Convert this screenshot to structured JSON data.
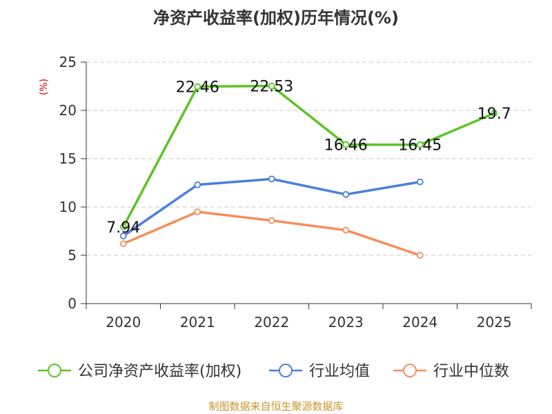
{
  "title": "净资产收益率(加权)历年情况(%)",
  "footer": "制图数据来自恒生聚源数据库",
  "chart_data": {
    "type": "line",
    "title": "净资产收益率(加权)历年情况(%)",
    "ylabel": "(%)",
    "xlabel": "",
    "ylim": [
      0,
      25
    ],
    "yticks": [
      "0",
      "5",
      "10",
      "15",
      "20",
      "25"
    ],
    "grid": true,
    "legend_position": "bottom",
    "categories": [
      "2020",
      "2021",
      "2022",
      "2023",
      "2024",
      "2025"
    ],
    "series": [
      {
        "name": "公司净资产收益率(加权)",
        "color": "#5bc424",
        "values": [
          7.94,
          22.46,
          22.53,
          16.46,
          16.45,
          19.7
        ],
        "labels": [
          "7.94",
          "22.46",
          "22.53",
          "16.46",
          "16.45",
          "19.7"
        ]
      },
      {
        "name": "行业均值",
        "color": "#4a7fdb",
        "values": [
          7.0,
          12.3,
          12.9,
          11.3,
          12.6,
          null
        ]
      },
      {
        "name": "行业中位数",
        "color": "#f58d5c",
        "values": [
          6.2,
          9.5,
          8.6,
          7.6,
          5.0,
          null
        ]
      }
    ]
  }
}
